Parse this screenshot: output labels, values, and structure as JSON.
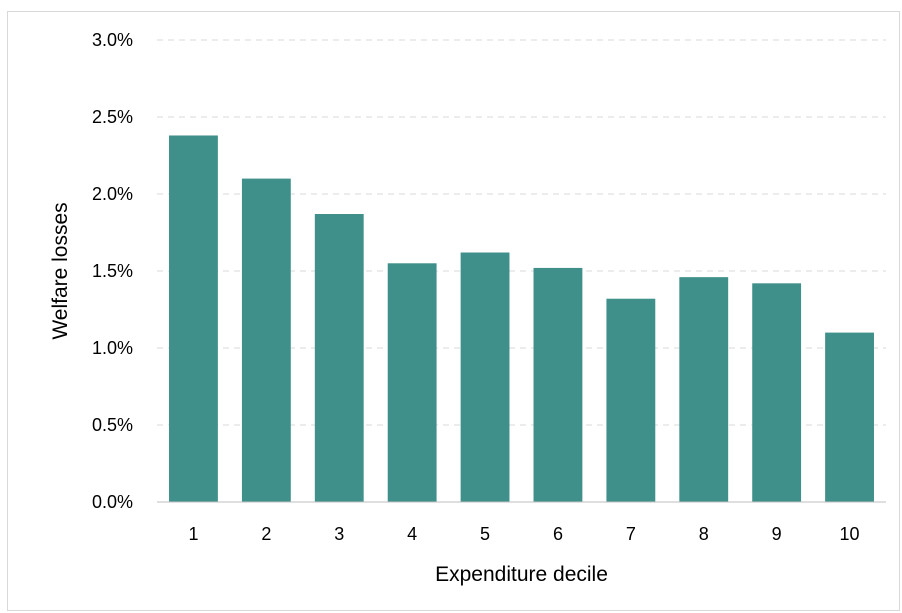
{
  "colors": {
    "bar": "#3f8f8a",
    "grid": "#d9d9d9",
    "axis": "#bfbfbf"
  },
  "chart_data": {
    "type": "bar",
    "categories": [
      "1",
      "2",
      "3",
      "4",
      "5",
      "6",
      "7",
      "8",
      "9",
      "10"
    ],
    "values": [
      2.38,
      2.1,
      1.87,
      1.55,
      1.62,
      1.52,
      1.32,
      1.46,
      1.42,
      1.1
    ],
    "y_unit": "%",
    "ylim": [
      0,
      3.0
    ],
    "yticks": [
      0.0,
      0.5,
      1.0,
      1.5,
      2.0,
      2.5,
      3.0
    ],
    "ytick_labels": [
      "0.0%",
      "0.5%",
      "1.0%",
      "1.5%",
      "2.0%",
      "2.5%",
      "3.0%"
    ],
    "xlabel": "Expenditure decile",
    "ylabel": "Welfare losses",
    "grid": "horizontal-dashed",
    "legend": "none"
  }
}
